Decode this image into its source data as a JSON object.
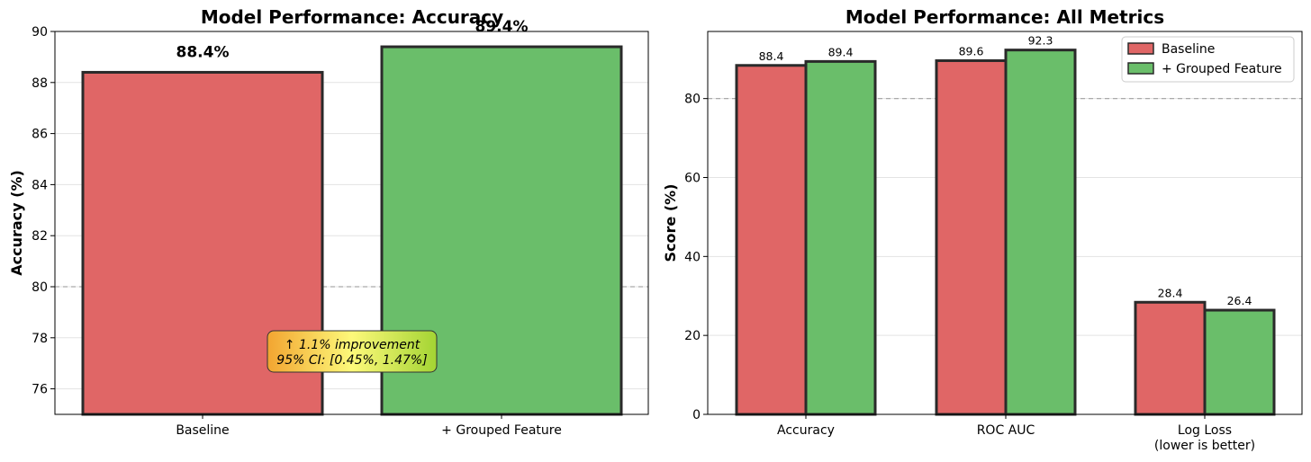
{
  "colors": {
    "baseline": "#e06666",
    "grouped": "#6abe6a",
    "edge": "#2a2a2a",
    "grid": "#e3e3e3",
    "refline": "#aaaaaa",
    "note_gradient": [
      "#f2a531",
      "#fdf97a",
      "#a3d433"
    ]
  },
  "chart_data": [
    {
      "type": "bar",
      "title": "Model Performance: Accuracy",
      "xlabel": "",
      "ylabel": "Accuracy (%)",
      "categories": [
        "Baseline",
        "+ Grouped Feature"
      ],
      "values": [
        88.4,
        89.4
      ],
      "value_labels": [
        "88.4%",
        "89.4%"
      ],
      "ylim": [
        75,
        90
      ],
      "yticks": [
        76,
        78,
        80,
        82,
        84,
        86,
        88,
        90
      ],
      "reference_line": 80,
      "grid": "y",
      "annotation": [
        "↑ 1.1% improvement",
        "95% CI: [0.45%, 1.47%]"
      ]
    },
    {
      "type": "bar",
      "title": "Model Performance: All Metrics",
      "xlabel": "",
      "ylabel": "Score (%)",
      "categories": [
        "Accuracy",
        "ROC AUC",
        "Log Loss\n(lower is better)"
      ],
      "series": [
        {
          "name": "Baseline",
          "values": [
            88.4,
            89.6,
            28.4
          ],
          "labels": [
            "88.4",
            "89.6",
            "28.4"
          ]
        },
        {
          "name": "+ Grouped Feature",
          "values": [
            89.4,
            92.3,
            26.4
          ],
          "labels": [
            "89.4",
            "92.3",
            "26.4"
          ]
        }
      ],
      "ylim": [
        0,
        97
      ],
      "yticks": [
        0,
        20,
        40,
        60,
        80
      ],
      "reference_line": 80,
      "grid": "y",
      "legend": "top-right"
    }
  ]
}
